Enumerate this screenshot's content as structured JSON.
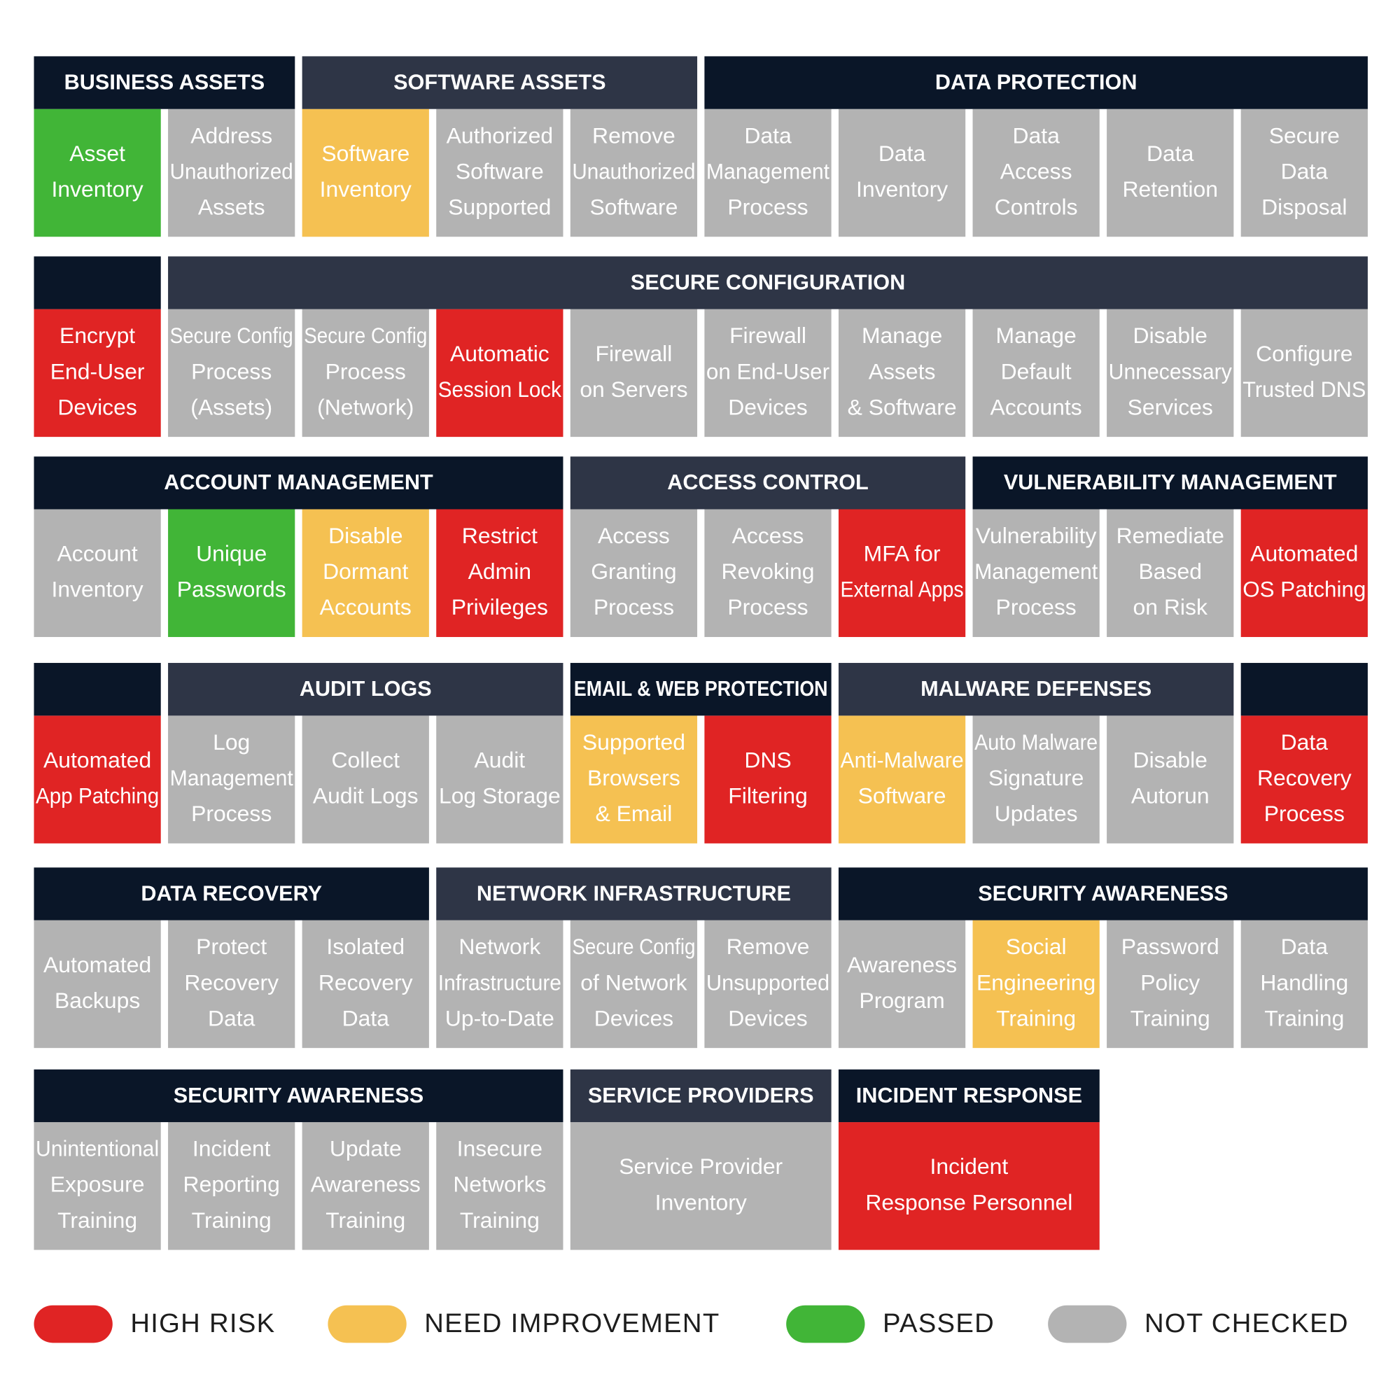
{
  "rows": [
    {
      "groups": [
        {
          "title": "BUSINESS ASSETS",
          "cells": [
            {
              "label": [
                "Asset",
                "Inventory"
              ],
              "color": "#41b537"
            },
            {
              "label": [
                "Address",
                "Unauthorized",
                "Assets"
              ],
              "color": "#b3b3b3"
            }
          ]
        },
        {
          "title": "SOFTWARE ASSETS",
          "cells": [
            {
              "label": [
                "Software",
                "Inventory"
              ],
              "color": "#f5c152"
            },
            {
              "label": [
                "Authorized",
                "Software",
                "Supported"
              ],
              "color": "#b3b3b3"
            },
            {
              "label": [
                "Remove",
                "Unauthorized",
                "Software"
              ],
              "color": "#b3b3b3"
            }
          ]
        },
        {
          "title": "DATA PROTECTION",
          "cells": [
            {
              "label": [
                "Data",
                "Management",
                "Process"
              ],
              "color": "#b3b3b3"
            },
            {
              "label": [
                "Data",
                "Inventory"
              ],
              "color": "#b3b3b3"
            },
            {
              "label": [
                "Data",
                "Access",
                "Controls"
              ],
              "color": "#b3b3b3"
            },
            {
              "label": [
                "Data",
                "Retention"
              ],
              "color": "#b3b3b3"
            },
            {
              "label": [
                "Secure",
                "Data",
                "Disposal"
              ],
              "color": "#b3b3b3"
            }
          ]
        }
      ]
    },
    {
      "groups": [
        {
          "cells": [
            {
              "label": [
                "Encrypt",
                "End-User",
                "Devices"
              ],
              "color": "#e02424"
            }
          ]
        },
        {
          "title": "SECURE CONFIGURATION",
          "cells": [
            {
              "label": [
                "Secure Config",
                "Process",
                "(Assets)"
              ],
              "color": "#b3b3b3"
            },
            {
              "label": [
                "Secure Config",
                "Process",
                "(Network)"
              ],
              "color": "#b3b3b3"
            },
            {
              "label": [
                "Automatic",
                "Session Lock"
              ],
              "color": "#e02424"
            },
            {
              "label": [
                "Firewall",
                "on Servers"
              ],
              "color": "#b3b3b3"
            },
            {
              "label": [
                "Firewall",
                "on End-User",
                "Devices"
              ],
              "color": "#b3b3b3"
            },
            {
              "label": [
                "Manage",
                "Assets",
                "& Software"
              ],
              "color": "#b3b3b3"
            },
            {
              "label": [
                "Manage",
                "Default",
                "Accounts"
              ],
              "color": "#b3b3b3"
            },
            {
              "label": [
                "Disable",
                "Unnecessary",
                "Services"
              ],
              "color": "#b3b3b3"
            },
            {
              "label": [
                "Configure",
                "Trusted DNS"
              ],
              "color": "#b3b3b3"
            }
          ]
        }
      ]
    },
    {
      "groups": [
        {
          "title": "ACCOUNT MANAGEMENT",
          "cells": [
            {
              "label": [
                "Account",
                "Inventory"
              ],
              "color": "#b3b3b3"
            },
            {
              "label": [
                "Unique",
                "Passwords"
              ],
              "color": "#41b537"
            },
            {
              "label": [
                "Disable",
                "Dormant",
                "Accounts"
              ],
              "color": "#f5c152"
            },
            {
              "label": [
                "Restrict",
                "Admin",
                "Privileges"
              ],
              "color": "#e02424"
            }
          ]
        },
        {
          "title": "ACCESS CONTROL",
          "cells": [
            {
              "label": [
                "Access",
                "Granting",
                "Process"
              ],
              "color": "#b3b3b3"
            },
            {
              "label": [
                "Access",
                "Revoking",
                "Process"
              ],
              "color": "#b3b3b3"
            },
            {
              "label": [
                "MFA for",
                "External Apps"
              ],
              "color": "#e02424"
            }
          ]
        },
        {
          "title": "VULNERABILITY MANAGEMENT",
          "cells": [
            {
              "label": [
                "Vulnerability",
                "Management",
                "Process"
              ],
              "color": "#b3b3b3"
            },
            {
              "label": [
                "Remediate",
                "Based",
                "on Risk"
              ],
              "color": "#b3b3b3"
            },
            {
              "label": [
                "Automated",
                "OS Patching"
              ],
              "color": "#e02424"
            }
          ]
        }
      ]
    },
    {
      "groups": [
        {
          "cells": [
            {
              "label": [
                "Automated",
                "App Patching"
              ],
              "color": "#e02424"
            }
          ]
        },
        {
          "title": "AUDIT LOGS",
          "cells": [
            {
              "label": [
                "Log",
                "Management",
                "Process"
              ],
              "color": "#b3b3b3"
            },
            {
              "label": [
                "Collect",
                "Audit Logs"
              ],
              "color": "#b3b3b3"
            },
            {
              "label": [
                "Audit",
                "Log Storage"
              ],
              "color": "#b3b3b3"
            }
          ]
        },
        {
          "title": "EMAIL & WEB PROTECTION",
          "cells": [
            {
              "label": [
                "Supported",
                "Browsers",
                "& Email"
              ],
              "color": "#f5c152"
            },
            {
              "label": [
                "DNS",
                "Filtering"
              ],
              "color": "#e02424"
            }
          ]
        },
        {
          "title": "MALWARE DEFENSES",
          "cells": [
            {
              "label": [
                "Anti-Malware",
                "Software"
              ],
              "color": "#f5c152"
            },
            {
              "label": [
                "Auto Malware",
                "Signature",
                "Updates"
              ],
              "color": "#b3b3b3"
            },
            {
              "label": [
                "Disable",
                "Autorun"
              ],
              "color": "#b3b3b3"
            }
          ]
        },
        {
          "cells": [
            {
              "label": [
                "Data",
                "Recovery",
                "Process"
              ],
              "color": "#e02424"
            }
          ]
        }
      ]
    },
    {
      "groups": [
        {
          "title": "DATA RECOVERY",
          "cells": [
            {
              "label": [
                "Automated",
                "Backups"
              ],
              "color": "#b3b3b3"
            },
            {
              "label": [
                "Protect",
                "Recovery",
                "Data"
              ],
              "color": "#b3b3b3"
            },
            {
              "label": [
                "Isolated",
                "Recovery",
                "Data"
              ],
              "color": "#b3b3b3"
            }
          ]
        },
        {
          "title": "NETWORK INFRASTRUCTURE",
          "cells": [
            {
              "label": [
                "Network",
                "Infrastructure",
                "Up-to-Date"
              ],
              "color": "#b3b3b3"
            },
            {
              "label": [
                "Secure Config",
                "of Network",
                "Devices"
              ],
              "color": "#b3b3b3"
            },
            {
              "label": [
                "Remove",
                "Unsupported",
                "Devices"
              ],
              "color": "#b3b3b3"
            }
          ]
        },
        {
          "title": "SECURITY AWARENESS",
          "cells": [
            {
              "label": [
                "Awareness",
                "Program"
              ],
              "color": "#b3b3b3"
            },
            {
              "label": [
                "Social",
                "Engineering",
                "Training"
              ],
              "color": "#f5c152"
            },
            {
              "label": [
                "Password",
                "Policy",
                "Training"
              ],
              "color": "#b3b3b3"
            },
            {
              "label": [
                "Data",
                "Handling",
                "Training"
              ],
              "color": "#b3b3b3"
            }
          ]
        }
      ]
    },
    {
      "groups": [
        {
          "title": "SECURITY AWARENESS",
          "cells": [
            {
              "label": [
                "Unintentional",
                "Exposure",
                "Training"
              ],
              "color": "#b3b3b3"
            },
            {
              "label": [
                "Incident",
                "Reporting",
                "Training"
              ],
              "color": "#b3b3b3"
            },
            {
              "label": [
                "Update",
                "Awareness",
                "Training"
              ],
              "color": "#b3b3b3"
            },
            {
              "label": [
                "Insecure",
                "Networks",
                "Training"
              ],
              "color": "#b3b3b3"
            }
          ]
        },
        {
          "title": "SERVICE PROVIDERS",
          "cells": [
            {
              "label": [
                "Service Provider",
                "Inventory"
              ],
              "color": "#b3b3b3",
              "columns": 2
            }
          ]
        },
        {
          "title": "INCIDENT RESPONSE",
          "cells": [
            {
              "label": [
                "Incident",
                "Response Personnel"
              ],
              "color": "#e02424",
              "columns": 2
            }
          ]
        }
      ]
    }
  ],
  "legend": [
    {
      "label": "HIGH RISK",
      "color": "#e02424"
    },
    {
      "label": "NEED IMPROVEMENT",
      "color": "#f5c152"
    },
    {
      "label": "PASSED",
      "color": "#41b537"
    },
    {
      "label": "NOT CHECKED",
      "color": "#b3b3b3"
    }
  ]
}
